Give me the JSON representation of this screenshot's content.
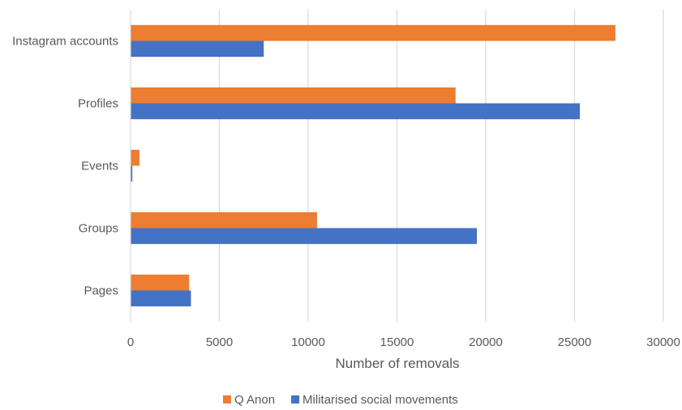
{
  "chart_data": {
    "type": "bar",
    "orientation": "horizontal",
    "categories": [
      "Instagram accounts",
      "Profiles",
      "Events",
      "Groups",
      "Pages"
    ],
    "series": [
      {
        "name": "Q Anon",
        "color": "#ED7D31",
        "values": [
          27300,
          18300,
          500,
          10500,
          3300
        ]
      },
      {
        "name": "Militarised social movements",
        "color": "#4472C4",
        "values": [
          7500,
          25300,
          100,
          19500,
          3400
        ]
      }
    ],
    "xlabel": "Number of removals",
    "ylabel": "",
    "title": "",
    "xlim": [
      0,
      30000
    ],
    "x_ticks": [
      "0",
      "5000",
      "10000",
      "15000",
      "20000",
      "25000",
      "30000"
    ],
    "grid": "vertical",
    "legend_position": "bottom"
  }
}
